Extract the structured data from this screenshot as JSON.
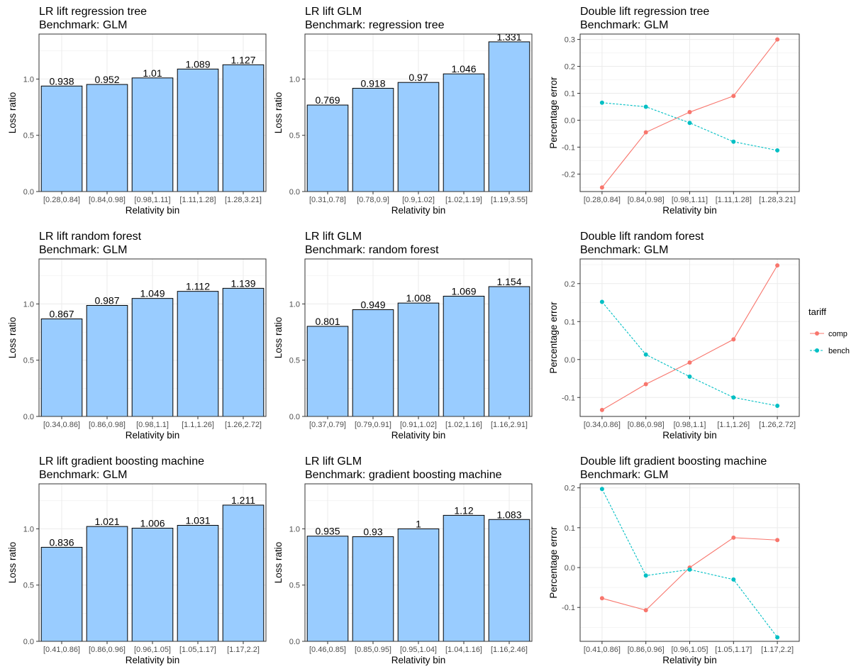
{
  "figure": {
    "legend": {
      "title": "tariff",
      "entries": [
        {
          "label": "comp",
          "color": "#F8766D",
          "style": "solid"
        },
        {
          "label": "bench",
          "color": "#00BFC4",
          "style": "dashed"
        }
      ]
    },
    "colors": {
      "bar_fill": "#99CCFF",
      "bar_stroke": "#000000",
      "comp": "#F8766D",
      "bench": "#00BFC4",
      "grid": "#EBEBEB"
    }
  },
  "chart_data": [
    {
      "type": "bar",
      "title": "LR lift regression tree",
      "subtitle": "Benchmark: GLM",
      "xlabel": "Relativity bin",
      "ylabel": "Loss ratio",
      "categories": [
        "[0.28,0.84]",
        "[0.84,0.98]",
        "[0.98,1.11]",
        "[1.11,1.28]",
        "[1.28,3.21]"
      ],
      "values": [
        0.938,
        0.952,
        1.01,
        1.089,
        1.127
      ],
      "value_labels": [
        "0.938",
        "0.952",
        "1.01",
        "1.089",
        "1.127"
      ],
      "ylim": [
        0,
        1.4
      ],
      "yticks": [
        0,
        0.5,
        1.0
      ],
      "ytick_labels": [
        "0.0",
        "0.5",
        "1.0"
      ],
      "grid": true
    },
    {
      "type": "bar",
      "title": "LR lift GLM",
      "subtitle": "Benchmark: regression tree",
      "xlabel": "Relativity bin",
      "ylabel": "Loss ratio",
      "categories": [
        "[0.31,0.78]",
        "[0.78,0.9]",
        "[0.9,1.02]",
        "[1.02,1.19]",
        "[1.19,3.55]"
      ],
      "values": [
        0.769,
        0.918,
        0.97,
        1.046,
        1.331
      ],
      "value_labels": [
        "0.769",
        "0.918",
        "0.97",
        "1.046",
        "1.331"
      ],
      "ylim": [
        0,
        1.4
      ],
      "yticks": [
        0,
        0.5,
        1.0
      ],
      "ytick_labels": [
        "0.0",
        "0.5",
        "1.0"
      ],
      "grid": true
    },
    {
      "type": "line",
      "title": "Double lift regression tree",
      "subtitle": "Benchmark: GLM",
      "xlabel": "Relativity bin",
      "ylabel": "Percentage error",
      "categories": [
        "[0.28,0.84]",
        "[0.84,0.98]",
        "[0.98,1.11]",
        "[1.11,1.28]",
        "[1.28,3.21]"
      ],
      "series": [
        {
          "name": "comp",
          "values": [
            -0.25,
            -0.045,
            0.03,
            0.09,
            0.3
          ]
        },
        {
          "name": "bench",
          "values": [
            0.065,
            0.05,
            -0.01,
            -0.08,
            -0.112
          ]
        }
      ],
      "ylim": [
        -0.265,
        0.32
      ],
      "yticks": [
        -0.2,
        -0.1,
        0.0,
        0.1,
        0.2,
        0.3
      ],
      "ytick_labels": [
        "-0.2",
        "-0.1",
        "0.0",
        "0.1",
        "0.2",
        "0.3"
      ],
      "grid": true
    },
    {
      "type": "bar",
      "title": "LR lift random forest",
      "subtitle": "Benchmark: GLM",
      "xlabel": "Relativity bin",
      "ylabel": "Loss ratio",
      "categories": [
        "[0.34,0.86]",
        "[0.86,0.98]",
        "[0.98,1.1]",
        "[1.1,1.26]",
        "[1.26,2.72]"
      ],
      "values": [
        0.867,
        0.987,
        1.049,
        1.112,
        1.139
      ],
      "value_labels": [
        "0.867",
        "0.987",
        "1.049",
        "1.112",
        "1.139"
      ],
      "ylim": [
        0,
        1.4
      ],
      "yticks": [
        0,
        0.5,
        1.0
      ],
      "ytick_labels": [
        "0.0",
        "0.5",
        "1.0"
      ],
      "grid": true
    },
    {
      "type": "bar",
      "title": "LR lift GLM",
      "subtitle": "Benchmark: random forest",
      "xlabel": "Relativity bin",
      "ylabel": "Loss ratio",
      "categories": [
        "[0.37,0.79]",
        "[0.79,0.91]",
        "[0.91,1.02]",
        "[1.02,1.16]",
        "[1.16,2.91]"
      ],
      "values": [
        0.801,
        0.949,
        1.008,
        1.069,
        1.154
      ],
      "value_labels": [
        "0.801",
        "0.949",
        "1.008",
        "1.069",
        "1.154"
      ],
      "ylim": [
        0,
        1.4
      ],
      "yticks": [
        0,
        0.5,
        1.0
      ],
      "ytick_labels": [
        "0.0",
        "0.5",
        "1.0"
      ],
      "grid": true
    },
    {
      "type": "line",
      "title": "Double lift random forest",
      "subtitle": "Benchmark: GLM",
      "xlabel": "Relativity bin",
      "ylabel": "Percentage error",
      "categories": [
        "[0.34,0.86]",
        "[0.86,0.98]",
        "[0.98,1.1]",
        "[1.1,1.26]",
        "[1.26,2.72]"
      ],
      "series": [
        {
          "name": "comp",
          "values": [
            -0.133,
            -0.065,
            -0.008,
            0.053,
            0.248
          ]
        },
        {
          "name": "bench",
          "values": [
            0.152,
            0.013,
            -0.045,
            -0.1,
            -0.122
          ]
        }
      ],
      "ylim": [
        -0.15,
        0.265
      ],
      "yticks": [
        -0.1,
        0.0,
        0.1,
        0.2
      ],
      "ytick_labels": [
        "-0.1",
        "0.0",
        "0.1",
        "0.2"
      ],
      "grid": true
    },
    {
      "type": "bar",
      "title": "LR lift gradient boosting machine",
      "subtitle": "Benchmark: GLM",
      "xlabel": "Relativity bin",
      "ylabel": "Loss ratio",
      "categories": [
        "[0.41,0.86]",
        "[0.86,0.96]",
        "[0.96,1.05]",
        "[1.05,1.17]",
        "[1.17,2.2]"
      ],
      "values": [
        0.836,
        1.021,
        1.006,
        1.031,
        1.211
      ],
      "value_labels": [
        "0.836",
        "1.021",
        "1.006",
        "1.031",
        "1.211"
      ],
      "ylim": [
        0,
        1.4
      ],
      "yticks": [
        0,
        0.5,
        1.0
      ],
      "ytick_labels": [
        "0.0",
        "0.5",
        "1.0"
      ],
      "grid": true
    },
    {
      "type": "bar",
      "title": "LR lift GLM",
      "subtitle": "Benchmark: gradient boosting machine",
      "xlabel": "Relativity bin",
      "ylabel": "Loss ratio",
      "categories": [
        "[0.46,0.85]",
        "[0.85,0.95]",
        "[0.95,1.04]",
        "[1.04,1.16]",
        "[1.16,2.46]"
      ],
      "values": [
        0.935,
        0.93,
        1.0,
        1.12,
        1.083
      ],
      "value_labels": [
        "0.935",
        "0.93",
        "1",
        "1.12",
        "1.083"
      ],
      "ylim": [
        0,
        1.4
      ],
      "yticks": [
        0,
        0.5,
        1.0
      ],
      "ytick_labels": [
        "0.0",
        "0.5",
        "1.0"
      ],
      "grid": true
    },
    {
      "type": "line",
      "title": "Double lift gradient boosting machine",
      "subtitle": "Benchmark: GLM",
      "xlabel": "Relativity bin",
      "ylabel": "Percentage error",
      "categories": [
        "[0.41,0.86]",
        "[0.86,0.96]",
        "[0.96,1.05]",
        "[1.05,1.17]",
        "[1.17,2.2]"
      ],
      "series": [
        {
          "name": "comp",
          "values": [
            -0.077,
            -0.107,
            0.0,
            0.075,
            0.069
          ]
        },
        {
          "name": "bench",
          "values": [
            0.197,
            -0.02,
            -0.005,
            -0.03,
            -0.175
          ]
        }
      ],
      "ylim": [
        -0.185,
        0.21
      ],
      "yticks": [
        -0.1,
        0.0,
        0.1,
        0.2
      ],
      "ytick_labels": [
        "-0.1",
        "0.0",
        "0.1",
        "0.2"
      ],
      "grid": true
    }
  ]
}
